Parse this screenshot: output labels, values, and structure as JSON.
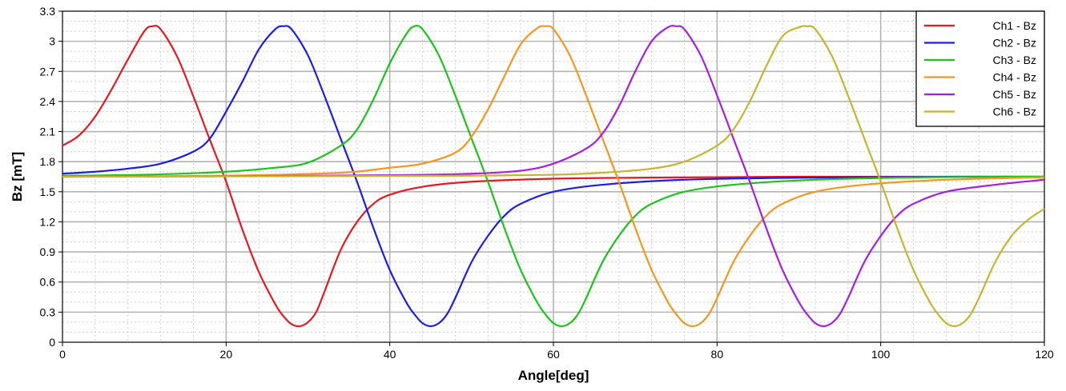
{
  "chart_data": {
    "type": "line",
    "title": "",
    "xlabel": "Angle[deg]",
    "ylabel": "Bz [mT]",
    "xlim": [
      0,
      120
    ],
    "ylim": [
      0,
      3.3
    ],
    "xticks": [
      0,
      20,
      40,
      60,
      80,
      100,
      120
    ],
    "yticks": [
      0,
      0.3,
      0.6,
      0.9,
      1.2,
      1.5,
      1.8,
      2.1,
      2.4,
      2.7,
      3,
      3.3
    ],
    "xtick_labels": [
      "0",
      "20",
      "40",
      "60",
      "80",
      "100",
      "120"
    ],
    "ytick_labels": [
      "0",
      "0.3",
      "0.6",
      "0.9",
      "1.2",
      "1.5",
      "1.8",
      "2.1",
      "2.4",
      "2.7",
      "3",
      "3.3"
    ],
    "grid": true,
    "minor_grid": true,
    "legend_position": "top-right",
    "series": [
      {
        "name": "Ch1 - Bz",
        "color": "#e8191e",
        "x": [
          0,
          2,
          4,
          6,
          8,
          10,
          11,
          12,
          14,
          16,
          18,
          20,
          22,
          24,
          26,
          27,
          28,
          29,
          30,
          31,
          32,
          34,
          36,
          38,
          40,
          44,
          50,
          60,
          70,
          80,
          90,
          100,
          110,
          120
        ],
        "y": [
          1.96,
          2.06,
          2.25,
          2.52,
          2.82,
          3.1,
          3.15,
          3.12,
          2.85,
          2.45,
          2.02,
          1.6,
          1.12,
          0.7,
          0.38,
          0.26,
          0.18,
          0.16,
          0.2,
          0.3,
          0.5,
          0.92,
          1.2,
          1.38,
          1.47,
          1.55,
          1.6,
          1.63,
          1.64,
          1.645,
          1.65,
          1.65,
          1.65,
          1.65
        ]
      },
      {
        "name": "Ch2 - Bz",
        "color": "#1a1ee8",
        "x": [
          0,
          4,
          8,
          12,
          16,
          18,
          20,
          22,
          24,
          26,
          27,
          28,
          30,
          32,
          34,
          36,
          38,
          40,
          42,
          43,
          44,
          45,
          46,
          47,
          48,
          50,
          52,
          54,
          56,
          60,
          66,
          76,
          90,
          100,
          110,
          120
        ],
        "y": [
          1.68,
          1.7,
          1.73,
          1.78,
          1.9,
          2.03,
          2.3,
          2.6,
          2.92,
          3.12,
          3.15,
          3.12,
          2.86,
          2.46,
          2.03,
          1.6,
          1.14,
          0.72,
          0.4,
          0.28,
          0.19,
          0.16,
          0.19,
          0.28,
          0.44,
          0.8,
          1.06,
          1.26,
          1.38,
          1.5,
          1.57,
          1.62,
          1.64,
          1.645,
          1.65,
          1.65
        ]
      },
      {
        "name": "Ch3 - Bz",
        "color": "#1bc41b",
        "x": [
          0,
          10,
          20,
          26,
          30,
          34,
          36,
          38,
          40,
          42,
          43,
          44,
          46,
          48,
          50,
          52,
          54,
          56,
          58,
          59,
          60,
          61,
          62,
          63,
          64,
          66,
          68,
          70,
          72,
          76,
          82,
          92,
          106,
          120
        ],
        "y": [
          1.66,
          1.67,
          1.7,
          1.74,
          1.79,
          1.96,
          2.12,
          2.42,
          2.78,
          3.07,
          3.15,
          3.12,
          2.86,
          2.46,
          2.03,
          1.6,
          1.14,
          0.72,
          0.4,
          0.28,
          0.19,
          0.16,
          0.19,
          0.28,
          0.44,
          0.8,
          1.06,
          1.26,
          1.38,
          1.5,
          1.57,
          1.62,
          1.645,
          1.65
        ]
      },
      {
        "name": "Ch4 - Bz",
        "color": "#f7961b",
        "x": [
          0,
          20,
          34,
          40,
          44,
          48,
          50,
          52,
          54,
          56,
          58,
          59,
          60,
          62,
          64,
          66,
          68,
          70,
          72,
          74,
          75,
          76,
          77,
          78,
          79,
          80,
          82,
          84,
          86,
          88,
          92,
          98,
          108,
          120
        ],
        "y": [
          1.65,
          1.66,
          1.69,
          1.74,
          1.78,
          1.89,
          2.05,
          2.32,
          2.65,
          2.97,
          3.13,
          3.15,
          3.12,
          2.86,
          2.46,
          2.03,
          1.6,
          1.14,
          0.72,
          0.4,
          0.28,
          0.19,
          0.16,
          0.19,
          0.28,
          0.44,
          0.8,
          1.06,
          1.26,
          1.38,
          1.5,
          1.57,
          1.62,
          1.645
        ]
      },
      {
        "name": "Ch5 - Bz",
        "color": "#a81ee0",
        "x": [
          0,
          20,
          40,
          50,
          56,
          60,
          64,
          66,
          68,
          70,
          72,
          74,
          75,
          76,
          78,
          80,
          82,
          84,
          86,
          88,
          90,
          91,
          92,
          93,
          94,
          95,
          96,
          98,
          100,
          102,
          104,
          108,
          114,
          120
        ],
        "y": [
          1.65,
          1.655,
          1.665,
          1.68,
          1.71,
          1.78,
          1.93,
          2.08,
          2.35,
          2.7,
          3.0,
          3.14,
          3.15,
          3.12,
          2.86,
          2.46,
          2.03,
          1.6,
          1.14,
          0.72,
          0.4,
          0.28,
          0.19,
          0.16,
          0.19,
          0.28,
          0.44,
          0.8,
          1.06,
          1.26,
          1.38,
          1.5,
          1.57,
          1.62
        ]
      },
      {
        "name": "Ch6 - Bz",
        "color": "#c8b42e",
        "x": [
          0,
          30,
          50,
          60,
          66,
          72,
          76,
          80,
          82,
          84,
          86,
          88,
          90,
          91,
          92,
          94,
          96,
          98,
          100,
          102,
          104,
          106,
          107,
          108,
          109,
          110,
          111,
          112,
          114,
          116,
          118,
          120
        ],
        "y": [
          1.65,
          1.655,
          1.66,
          1.67,
          1.69,
          1.73,
          1.8,
          1.96,
          2.12,
          2.4,
          2.75,
          3.05,
          3.14,
          3.15,
          3.12,
          2.86,
          2.46,
          2.03,
          1.6,
          1.14,
          0.72,
          0.4,
          0.28,
          0.19,
          0.16,
          0.19,
          0.28,
          0.44,
          0.8,
          1.06,
          1.22,
          1.33
        ]
      }
    ]
  }
}
